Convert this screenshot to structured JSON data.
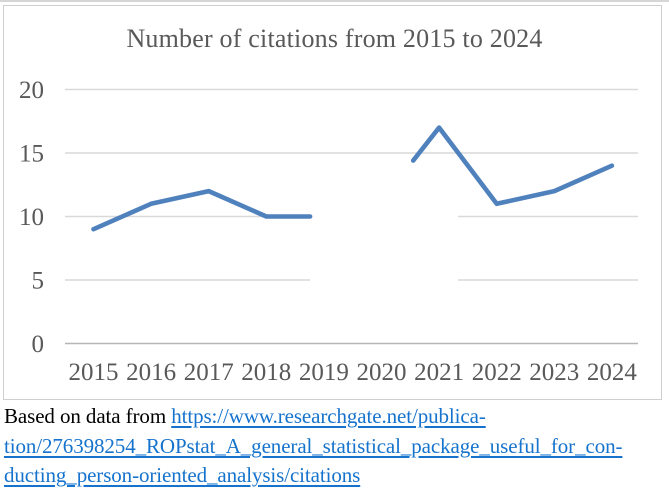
{
  "chart_data": {
    "type": "line",
    "title": "Number of citations from 2015 to 2024",
    "categories": [
      "2015",
      "2016",
      "2017",
      "2018",
      "2019",
      "2020",
      "2021",
      "2022",
      "2023",
      "2024"
    ],
    "series": [
      {
        "name": "Number of citations",
        "values": [
          9,
          11,
          12,
          10,
          10,
          null,
          17,
          11,
          12,
          14
        ]
      }
    ],
    "ylim": [
      0,
      20
    ],
    "yticks": [
      0,
      5,
      10,
      15,
      20
    ],
    "grid": true,
    "legend": false,
    "line_color": "#4f81bd",
    "gridline_color": "#d9d9d9",
    "axis_line_color": "#b5b5b5",
    "tick_label_color": "#595959",
    "title_color": "#595959",
    "visible_segments": [
      [
        [
          0,
          9
        ],
        [
          1,
          11
        ],
        [
          2,
          12
        ],
        [
          3,
          10
        ],
        [
          3.76,
          10
        ]
      ],
      [
        [
          5.55,
          14.4
        ],
        [
          6,
          17
        ],
        [
          7,
          11
        ],
        [
          8,
          12
        ],
        [
          9,
          14
        ]
      ]
    ],
    "gridline_gap_idx": [
      3.76,
      6.33
    ],
    "gap_note": "Line and the y=5 / y=10 gridlines are blanked out over the missing 2020 value; second line segment re-emerges mid-rise before the 2021 peak."
  },
  "caption": {
    "prefix": "Based on data from ",
    "link_lines": [
      "https://www.researchgate.net/publica-",
      "tion/276398254_ROPstat_A_general_statistical_package_useful_for_con-",
      "ducting_person-oriented_analysis/citations"
    ],
    "link_color": "#1673cd"
  }
}
